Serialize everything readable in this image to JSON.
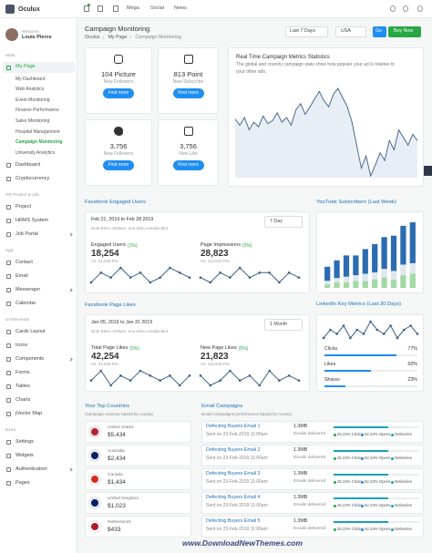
{
  "topbar": {
    "logo": "Oculux",
    "menu": [
      "Mega",
      "Social",
      "News"
    ]
  },
  "user": {
    "greeting": "Welcome",
    "name": "Louis Pierce"
  },
  "sidebar": [
    {
      "title": "Main",
      "items": [
        {
          "label": "My Page",
          "children": [
            "My Dashboard",
            "Web Analytics",
            "Event Monitoring",
            "Finance Performance",
            "Sales Monitoring",
            "Hospital Management",
            "Campaign Monitoring",
            "University Analytics"
          ]
        },
        {
          "label": "Dashboard"
        },
        {
          "label": "Cryptocurrency"
        }
      ]
    },
    {
      "title": "HR Project & Job",
      "items": [
        {
          "label": "Project"
        },
        {
          "label": "HRMS System"
        },
        {
          "label": "Job Portal"
        }
      ]
    },
    {
      "title": "App",
      "items": [
        {
          "label": "Contact"
        },
        {
          "label": "Email"
        },
        {
          "label": "Messenger"
        },
        {
          "label": "Calendar"
        }
      ]
    },
    {
      "title": "UI Elements",
      "items": [
        {
          "label": "Cards Layout"
        },
        {
          "label": "Icons"
        },
        {
          "label": "Components"
        },
        {
          "label": "Forms"
        },
        {
          "label": "Tables"
        },
        {
          "label": "Charts"
        },
        {
          "label": "jVector Map"
        }
      ]
    },
    {
      "title": "Extra",
      "items": [
        {
          "label": "Settings"
        },
        {
          "label": "Widgets"
        },
        {
          "label": "Authentication"
        },
        {
          "label": "Pages"
        }
      ]
    }
  ],
  "header": {
    "title": "Campaign Monitoring",
    "breadcrumb": [
      "Oculux",
      "My Page",
      "Campaign Monitoring"
    ],
    "period": "Last 7 Days",
    "country": "USA",
    "go": "Go",
    "buy": "Buy Now"
  },
  "stats": [
    {
      "value": "104 Picture",
      "label": "New Followers",
      "button": "Find more"
    },
    {
      "value": "813 Point",
      "label": "New Subscribe",
      "button": "Find more"
    },
    {
      "value": "3,756",
      "label": "New Followers",
      "button": "Find more"
    },
    {
      "value": "3,756",
      "label": "New Like",
      "button": "Find more"
    }
  ],
  "realtime": {
    "title": "Real Time Campaign Metrics Statistics",
    "description": [
      "The global and country campaign stats show how populer your ad is relative to",
      "your other ads."
    ],
    "values": [
      62,
      58,
      63,
      55,
      60,
      57,
      64,
      59,
      61,
      66,
      60,
      63,
      58,
      68,
      72,
      65,
      70,
      75,
      80,
      74,
      70,
      78,
      82,
      76,
      70,
      60,
      45,
      30,
      38,
      25,
      32,
      40,
      35,
      48,
      42,
      55,
      50,
      45,
      52,
      48
    ]
  },
  "fb_engaged": {
    "title": "Facebook Engaged Users",
    "range": "Feb 21, 2019 to Feb 28 2019",
    "period": "7 Day",
    "note": "Note Enim omittam, eos dicta complectitur",
    "metrics": [
      {
        "label": "Engaged Users",
        "change": "(1%)",
        "value": "18,254",
        "previous": "Vs. 21,540 Pre",
        "values": [
          3,
          5,
          4,
          6,
          4,
          5,
          3,
          4,
          6,
          5,
          4
        ]
      },
      {
        "label": "Page Impressions",
        "change": "(5%)",
        "value": "28,823",
        "previous": "Vs. 112,540 Pre",
        "values": [
          4,
          3,
          5,
          4,
          6,
          4,
          5,
          5,
          3,
          5,
          4
        ]
      }
    ]
  },
  "youtube": {
    "title": "YouTube Subscribers (Last Week)",
    "series": [
      {
        "color": "#a3d9a5",
        "values": [
          5,
          8,
          8,
          10,
          10,
          12,
          15,
          12,
          18,
          20
        ]
      },
      {
        "color": "#dfe6ee",
        "values": [
          5,
          6,
          8,
          8,
          10,
          10,
          12,
          12,
          15,
          15
        ]
      },
      {
        "color": "#2b6cb0",
        "values": [
          20,
          25,
          30,
          28,
          35,
          40,
          45,
          50,
          55,
          58
        ]
      }
    ]
  },
  "fb_likes": {
    "title": "Facebook Page Likes",
    "range": "Jan 05, 2019 to Jan 31 2019",
    "period": "1 Month",
    "note": "Note Enim omittam, eos dicta complectitur",
    "metrics": [
      {
        "label": "Total Page Likes",
        "change": "(5%)",
        "value": "42,254",
        "previous": "Vs. 21,540 Pre",
        "values": [
          4,
          6,
          3,
          5,
          4,
          6,
          5,
          4,
          5,
          3,
          5
        ]
      },
      {
        "label": "New Page Likes",
        "change": "(5%)",
        "value": "21,823",
        "previous": "Vs. 112,540 Pre",
        "values": [
          5,
          3,
          4,
          6,
          4,
          5,
          3,
          6,
          4,
          5,
          4
        ]
      }
    ]
  },
  "linkedin": {
    "title": "LinkedIn Key Metrics (Last 30 Days)",
    "values": [
      3,
      5,
      4,
      6,
      3,
      5,
      4,
      7,
      5,
      4,
      6,
      3,
      5,
      6,
      4
    ],
    "metrics": [
      {
        "label": "Clicks",
        "value": "77%"
      },
      {
        "label": "Likes",
        "value": "50%"
      },
      {
        "label": "Shares",
        "value": "23%"
      }
    ]
  },
  "countries": {
    "title": "Your Top Countries",
    "subtitle": "Campaign revenue based by country",
    "rows": [
      {
        "name": "United States",
        "amount": "$5,434"
      },
      {
        "name": "Australia",
        "amount": "$2,434"
      },
      {
        "name": "Canada",
        "amount": "$1,434"
      },
      {
        "name": "United Kingdom",
        "amount": "$1,023"
      },
      {
        "name": "Netherlands",
        "amount": "$433"
      }
    ]
  },
  "emails": {
    "title": "Email Campaigns",
    "subtitle": "Email Campaigns performance based by country",
    "rows": [
      {
        "name": "Defecting Buyers Email 1",
        "sent": "Sent on 23-Feb-2019 11:00am",
        "size": "1.3MB",
        "status": "Emails delivered",
        "clicks": "25.23% Clicks",
        "opens": "52.23% Opens",
        "deliveries": "Deliveries"
      },
      {
        "name": "Defecting Buyers Email 2",
        "sent": "Sent on 23-Feb-2019 11:00am",
        "size": "1.3MB",
        "status": "Emails delivered",
        "clicks": "25.23% Clicks",
        "opens": "52.23% Opens",
        "deliveries": "Deliveries"
      },
      {
        "name": "Defecting Buyers Email 3",
        "sent": "Sent on 23-Feb-2019 11:00am",
        "size": "1.3MB",
        "status": "Emails delivered",
        "clicks": "25.23% Clicks",
        "opens": "52.23% Opens",
        "deliveries": "Deliveries"
      },
      {
        "name": "Defecting Buyers Email 4",
        "sent": "Sent on 23-Feb-2019 11:00am",
        "size": "1.3MB",
        "status": "Emails delivered",
        "clicks": "25.23% Clicks",
        "opens": "52.23% Opens",
        "deliveries": "Deliveries"
      },
      {
        "name": "Defecting Buyers Email 5",
        "sent": "Sent on 23-Feb-2019 11:00am",
        "size": "1.3MB",
        "status": "Emails delivered",
        "clicks": "25.23% Clicks",
        "opens": "52.23% Opens",
        "deliveries": "Deliveries"
      }
    ]
  },
  "footer": "www.DownloadNewThemes.com"
}
